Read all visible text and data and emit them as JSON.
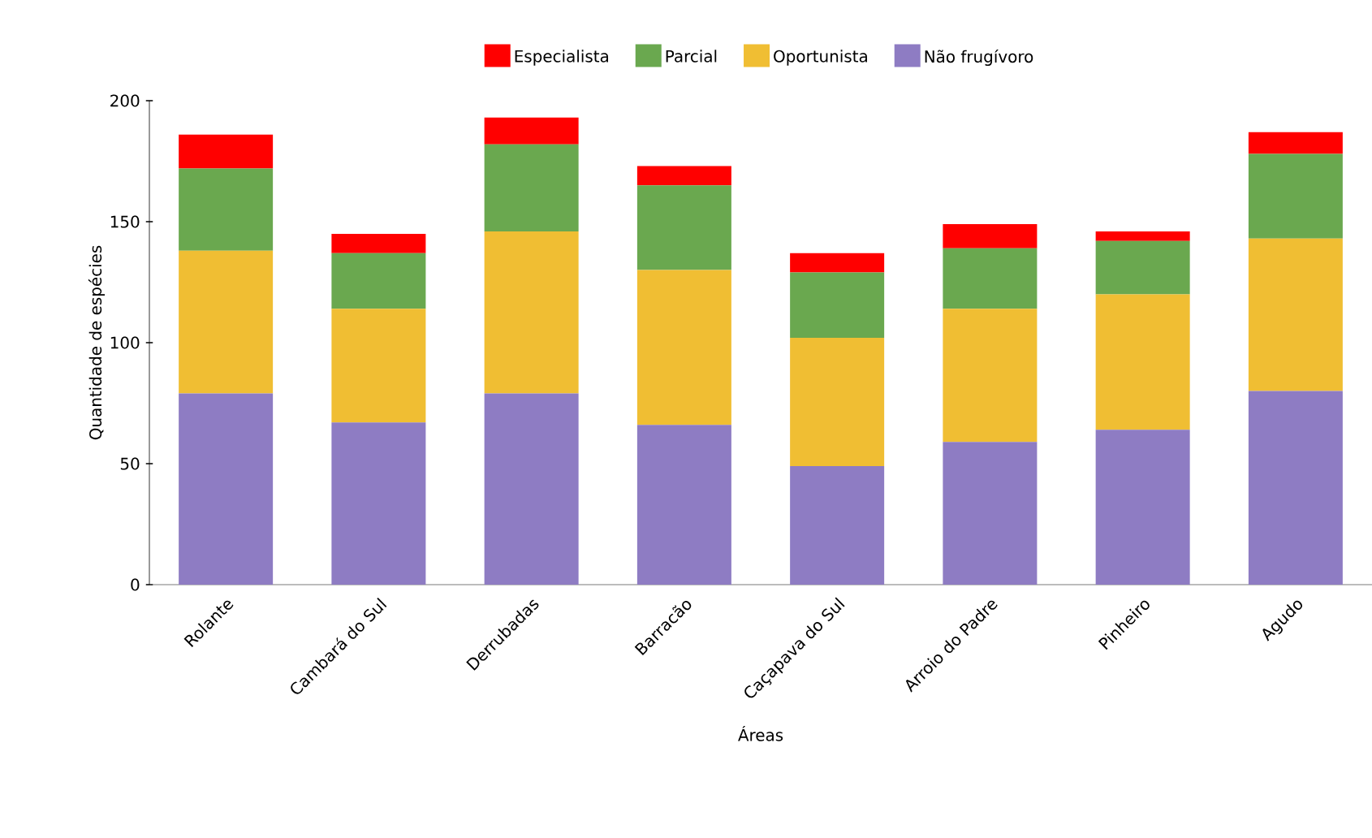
{
  "chart_data": {
    "type": "bar",
    "stacked": true,
    "xlabel": "Áreas",
    "ylabel": "Quantidade de espécies",
    "categories": [
      "Rolante",
      "Cambará do Sul",
      "Derrubadas",
      "Barracão",
      "Caçapava do Sul",
      "Arroio do Padre",
      "Pinheiro",
      "Agudo"
    ],
    "series": [
      {
        "name": "Não frugívoro",
        "color": "#8e7cc3",
        "values": [
          79,
          67,
          79,
          66,
          49,
          59,
          64,
          80
        ]
      },
      {
        "name": "Oportunista",
        "color": "#f0be33",
        "values": [
          59,
          47,
          67,
          64,
          53,
          55,
          56,
          63
        ]
      },
      {
        "name": "Parcial",
        "color": "#6aa84f",
        "values": [
          34,
          23,
          36,
          35,
          27,
          25,
          22,
          35
        ]
      },
      {
        "name": "Especialista",
        "color": "#ff0000",
        "values": [
          14,
          8,
          11,
          8,
          8,
          10,
          4,
          9
        ]
      }
    ],
    "ylim": [
      0,
      200
    ],
    "yticks": [
      0,
      50,
      100,
      150,
      200
    ],
    "grid": false,
    "legend": "top"
  }
}
